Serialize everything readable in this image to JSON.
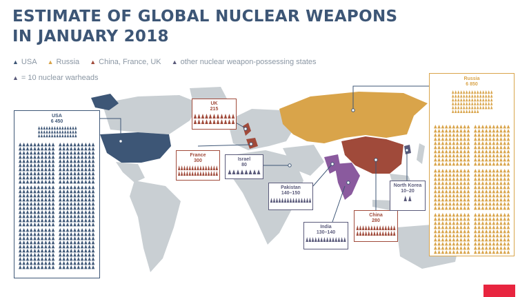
{
  "title_line1": "ESTIMATE OF GLOBAL NUCLEAR WEAPONS",
  "title_line2": "IN JANUARY 2018",
  "legend": [
    {
      "label": "USA",
      "color": "#3d5676"
    },
    {
      "label": "Russia",
      "color": "#d9a44a"
    },
    {
      "label": "China, France, UK",
      "color": "#a04a3a"
    },
    {
      "label": "other nuclear weapon-possessing states",
      "color": "#5a5a7a"
    }
  ],
  "legend_unit": "= 10 nuclear warheads",
  "colors": {
    "usa": "#3d5676",
    "russia": "#d9a44a",
    "china": "#a04a3a",
    "other": "#5a5a7a",
    "land": "#c9cfd3",
    "accent": "#e8253f"
  },
  "countries": {
    "usa": {
      "name": "USA",
      "value": "6 450"
    },
    "russia": {
      "name": "Russia",
      "value": "6 850"
    },
    "uk": {
      "name": "UK",
      "value": "215"
    },
    "france": {
      "name": "France",
      "value": "300"
    },
    "israel": {
      "name": "Israel",
      "value": "80"
    },
    "pakistan": {
      "name": "Pakistan",
      "value": "140–150"
    },
    "india": {
      "name": "India",
      "value": "130–140"
    },
    "china": {
      "name": "China",
      "value": "280"
    },
    "north_korea": {
      "name": "North Korea",
      "value": "10–20"
    }
  }
}
